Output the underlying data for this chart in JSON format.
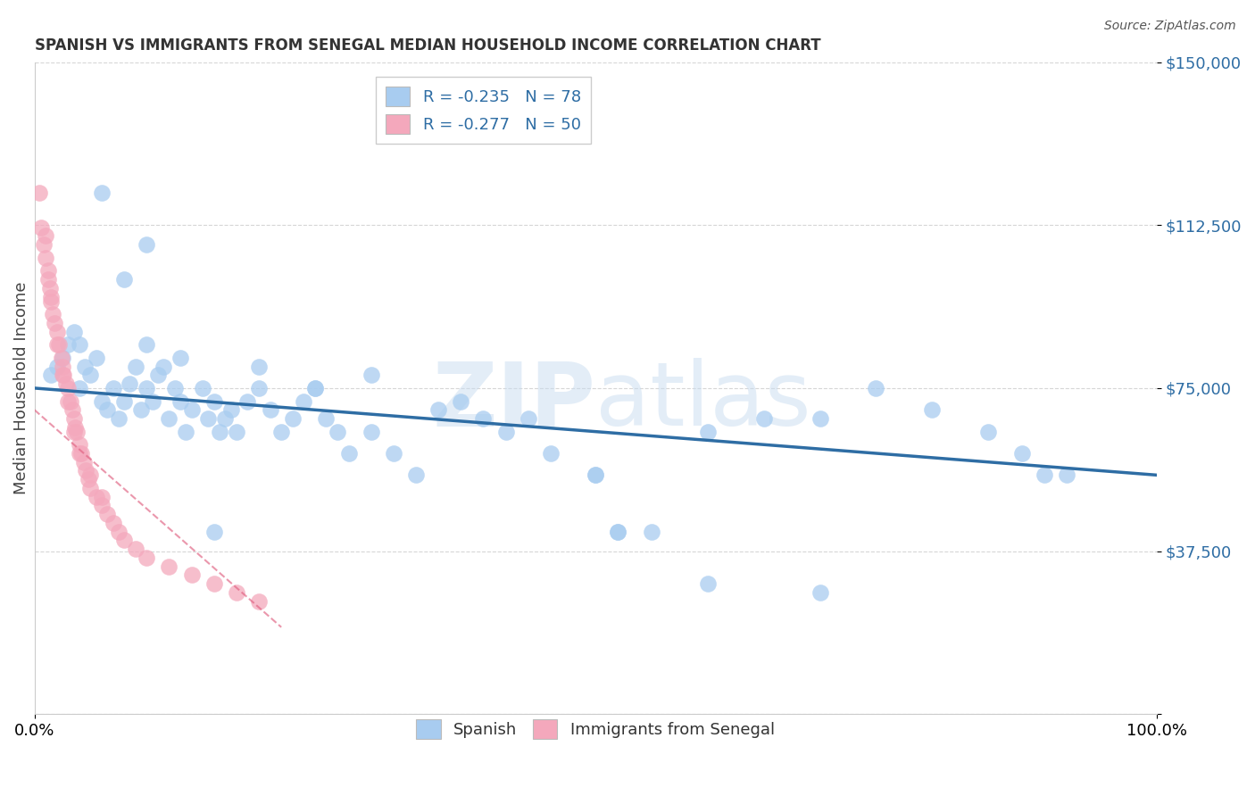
{
  "title": "SPANISH VS IMMIGRANTS FROM SENEGAL MEDIAN HOUSEHOLD INCOME CORRELATION CHART",
  "source": "Source: ZipAtlas.com",
  "ylabel": "Median Household Income",
  "xlim": [
    0,
    1.0
  ],
  "ylim": [
    0,
    150000
  ],
  "yticks": [
    0,
    37500,
    75000,
    112500,
    150000
  ],
  "ytick_labels": [
    "",
    "$37,500",
    "$75,000",
    "$112,500",
    "$150,000"
  ],
  "xtick_labels": [
    "0.0%",
    "100.0%"
  ],
  "watermark": "ZIPatlas",
  "blue_color": "#A8CCF0",
  "pink_color": "#F4A8BC",
  "blue_line_color": "#2E6DA4",
  "pink_line_color": "#E06080",
  "legend_blue_r": "-0.235",
  "legend_blue_n": "78",
  "legend_pink_r": "-0.277",
  "legend_pink_n": "50",
  "spanish_label": "Spanish",
  "senegal_label": "Immigrants from Senegal",
  "blue_x": [
    0.015,
    0.02,
    0.025,
    0.03,
    0.035,
    0.04,
    0.04,
    0.045,
    0.05,
    0.055,
    0.06,
    0.065,
    0.07,
    0.075,
    0.08,
    0.085,
    0.09,
    0.095,
    0.1,
    0.1,
    0.105,
    0.11,
    0.115,
    0.12,
    0.125,
    0.13,
    0.135,
    0.14,
    0.15,
    0.155,
    0.16,
    0.165,
    0.17,
    0.175,
    0.18,
    0.19,
    0.2,
    0.21,
    0.22,
    0.23,
    0.24,
    0.25,
    0.26,
    0.27,
    0.28,
    0.3,
    0.32,
    0.34,
    0.36,
    0.38,
    0.4,
    0.42,
    0.44,
    0.46,
    0.5,
    0.52,
    0.55,
    0.6,
    0.65,
    0.7,
    0.75,
    0.8,
    0.85,
    0.88,
    0.9,
    0.92,
    0.06,
    0.08,
    0.1,
    0.13,
    0.16,
    0.2,
    0.25,
    0.3,
    0.5,
    0.52,
    0.6,
    0.7
  ],
  "blue_y": [
    78000,
    80000,
    82000,
    85000,
    88000,
    75000,
    85000,
    80000,
    78000,
    82000,
    72000,
    70000,
    75000,
    68000,
    72000,
    76000,
    80000,
    70000,
    85000,
    75000,
    72000,
    78000,
    80000,
    68000,
    75000,
    72000,
    65000,
    70000,
    75000,
    68000,
    72000,
    65000,
    68000,
    70000,
    65000,
    72000,
    75000,
    70000,
    65000,
    68000,
    72000,
    75000,
    68000,
    65000,
    60000,
    65000,
    60000,
    55000,
    70000,
    72000,
    68000,
    65000,
    68000,
    60000,
    55000,
    42000,
    42000,
    65000,
    68000,
    68000,
    75000,
    70000,
    65000,
    60000,
    55000,
    55000,
    120000,
    100000,
    108000,
    82000,
    42000,
    80000,
    75000,
    78000,
    55000,
    42000,
    30000,
    28000
  ],
  "pink_x": [
    0.004,
    0.006,
    0.008,
    0.01,
    0.012,
    0.014,
    0.015,
    0.016,
    0.018,
    0.02,
    0.022,
    0.024,
    0.025,
    0.026,
    0.028,
    0.03,
    0.032,
    0.034,
    0.035,
    0.036,
    0.038,
    0.04,
    0.042,
    0.044,
    0.046,
    0.048,
    0.05,
    0.055,
    0.06,
    0.065,
    0.07,
    0.075,
    0.08,
    0.09,
    0.1,
    0.12,
    0.14,
    0.16,
    0.18,
    0.2,
    0.01,
    0.012,
    0.015,
    0.02,
    0.025,
    0.03,
    0.035,
    0.04,
    0.05,
    0.06
  ],
  "pink_y": [
    120000,
    112000,
    108000,
    105000,
    100000,
    98000,
    95000,
    92000,
    90000,
    88000,
    85000,
    82000,
    80000,
    78000,
    76000,
    75000,
    72000,
    70000,
    68000,
    66000,
    65000,
    62000,
    60000,
    58000,
    56000,
    54000,
    52000,
    50000,
    48000,
    46000,
    44000,
    42000,
    40000,
    38000,
    36000,
    34000,
    32000,
    30000,
    28000,
    26000,
    110000,
    102000,
    96000,
    85000,
    78000,
    72000,
    65000,
    60000,
    55000,
    50000
  ]
}
